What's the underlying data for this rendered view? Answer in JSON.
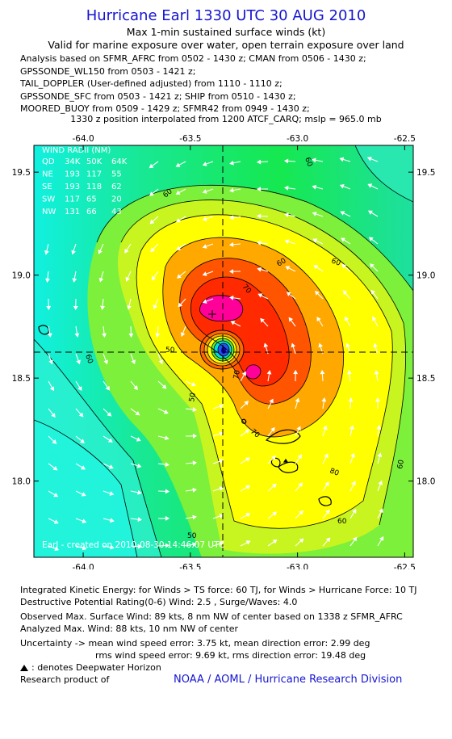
{
  "header": {
    "title": "Hurricane Earl 1330 UTC 30 AUG 2010",
    "subtitle_1": "Max 1-min sustained surface winds (kt)",
    "subtitle_2": "Valid for marine exposure over water, open terrain exposure over land"
  },
  "analysis_lines": [
    "Analysis based on SFMR_AFRC from 0502 - 1430 z; CMAN from 0506 - 1430 z;",
    "GPSSONDE_WL150 from 0503 - 1421 z;",
    "TAIL_DOPPLER (User-defined adjusted) from 1110 - 1110 z;",
    "GPSSONDE_SFC from 0503 - 1421 z; SHIP from 0510 - 1430 z;",
    "MOORED_BUOY from 0509 - 1429 z; SFMR42 from 0949 - 1430 z;"
  ],
  "position_note": "1330 z position interpolated from 1200 ATCF_CARQ; mslp = 965.0 mb",
  "chart_data": {
    "type": "heatmap",
    "x_ticks": [
      "-64.0",
      "-63.5",
      "-63.0",
      "-62.5"
    ],
    "x_tick_values": [
      -64.0,
      -63.5,
      -63.0,
      -62.5
    ],
    "y_ticks": [
      "19.5",
      "19.0",
      "18.5",
      "18.0"
    ],
    "y_tick_values": [
      19.5,
      19.0,
      18.5,
      18.0
    ],
    "xlim": [
      -64.23,
      -62.46
    ],
    "ylim": [
      17.63,
      19.63
    ],
    "center": {
      "lon": -63.39,
      "lat": 18.63
    },
    "max_wind_marker": {
      "lon": -63.43,
      "lat": 18.81
    },
    "contour_labels": [
      "60",
      "60",
      "60",
      "60",
      "60",
      "50",
      "50",
      "70",
      "70",
      "70",
      "80",
      "60",
      "50",
      "60"
    ],
    "color_legend_note": "wind speed shading (kt)",
    "wind_radii": {
      "title": "WIND RADII (NM)",
      "header": [
        "QD",
        "34K",
        "50K",
        "64K"
      ],
      "rows": [
        [
          "NE",
          "193",
          "117",
          "55"
        ],
        [
          "SE",
          "193",
          "118",
          "62"
        ],
        [
          "SW",
          "117",
          "65",
          "20"
        ],
        [
          "NW",
          "131",
          "66",
          "43"
        ]
      ]
    },
    "credit": "Earl - created on 2010-08-30 14:46:07 UTC"
  },
  "footer": {
    "ike": "Integrated Kinetic Energy:  for Winds > TS force: 60 TJ,  for Winds > Hurricane Force: 10 TJ",
    "dpr": "Destructive Potential Rating(0-6)   Wind: 2.5 , Surge/Waves: 4.0",
    "obs_max": "Observed Max. Surface Wind: 89 kts, 8 nm NW of center based on 1338 z SFMR_AFRC",
    "analyzed_max": "Analyzed Max. Wind: 88 kts, 10 nm NW of center",
    "uncertainty_1": "Uncertainty -> mean wind speed error: 3.75 kt,   mean direction error: 2.99 deg",
    "uncertainty_2": "rms wind speed error: 9.69 kt,   rms direction error: 19.48 deg",
    "deepwater": ": denotes Deepwater Horizon",
    "research": "Research product of",
    "noaa": "NOAA / AOML / Hurricane Research Division"
  },
  "colors": {
    "title": "#1515d0",
    "cyan": "#00ffff",
    "green_dark": "#00e000",
    "yellow": "#ffff00",
    "orange": "#ff9900",
    "red": "#ff2200",
    "magenta": "#ff0099"
  }
}
